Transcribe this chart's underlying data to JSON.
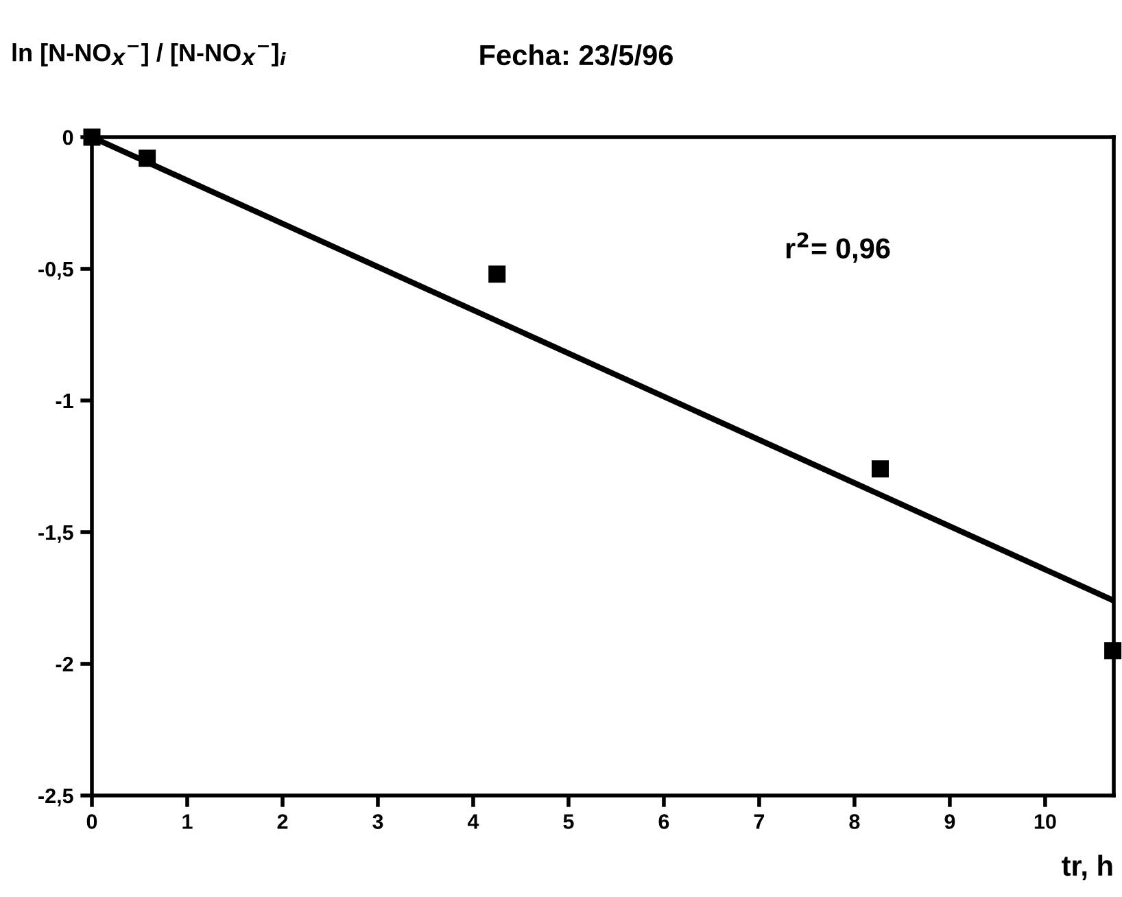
{
  "chart_data": {
    "type": "scatter",
    "title": "Fecha: 23/5/96",
    "xlabel": "tr, h",
    "ylabel": "ln [N-NO$_{X}$$^{−}$] / [N-NO$_{X}$$^{−}$]$_{i}$",
    "annotations": [
      "r$^{2}$= 0,96"
    ],
    "series": [
      {
        "color": "#000000",
        "marker": "square",
        "x": [
          0,
          0.58,
          4.25,
          8.27,
          10.71
        ],
        "values": [
          0,
          -0.08,
          -0.52,
          -1.26,
          -1.95
        ]
      },
      {
        "type": "line",
        "color": "#000000",
        "line_style": "solid",
        "marker": "none",
        "x": [
          0,
          10.72
        ],
        "values": [
          0,
          -1.76
        ]
      }
    ],
    "xlim": [
      0,
      10.72
    ],
    "ylim": [
      -2.5,
      0
    ],
    "xticks": [
      0,
      1,
      2,
      3,
      4,
      5,
      6,
      7,
      8,
      9,
      10
    ],
    "yticks": [
      0,
      {
        "value": -0.5,
        "label": "-0,5"
      },
      {
        "value": -1,
        "label": "-1"
      },
      {
        "value": -1.5,
        "label": "-1,5"
      },
      {
        "value": -2,
        "label": "-2"
      },
      {
        "value": -2.5,
        "label": "-2,5"
      }
    ],
    "grid": false,
    "legend": false
  }
}
